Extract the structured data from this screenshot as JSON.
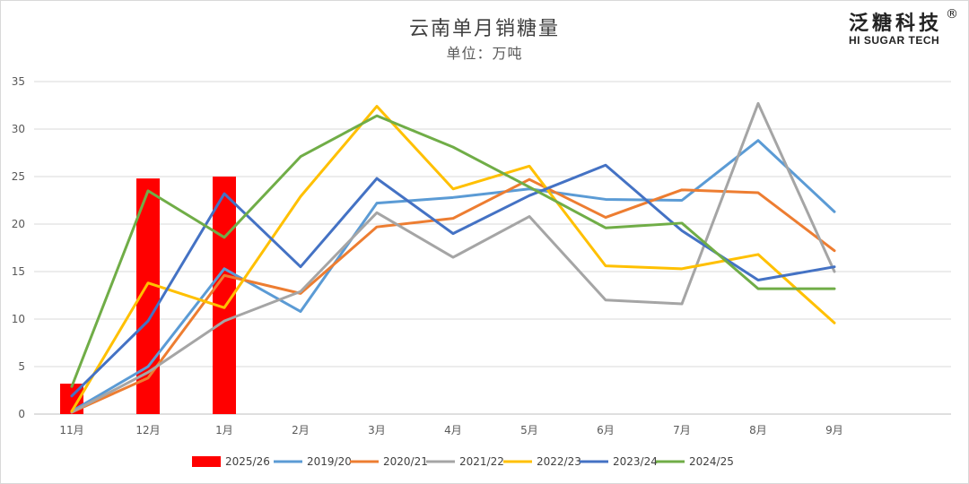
{
  "chart_data": {
    "type": "bar+line",
    "title": "云南单月销糖量",
    "subtitle": "单位：万吨",
    "categories": [
      "11月",
      "12月",
      "1月",
      "2月",
      "3月",
      "4月",
      "5月",
      "6月",
      "7月",
      "8月",
      "9月"
    ],
    "ylim": [
      0,
      35
    ],
    "yticks": [
      "0",
      "5",
      "10",
      "15",
      "20",
      "25",
      "30",
      "35"
    ],
    "grid": true,
    "legend_position": "bottom",
    "series": [
      {
        "name": "2025/26",
        "kind": "bar",
        "color": "#ff0000",
        "values": [
          3.2,
          24.8,
          25.0,
          null,
          null,
          null,
          null,
          null,
          null,
          null,
          null
        ]
      },
      {
        "name": "2019/20",
        "kind": "line",
        "color": "#5b9bd5",
        "values": [
          0.3,
          5.0,
          15.3,
          10.8,
          22.2,
          22.8,
          23.7,
          22.6,
          22.5,
          28.8,
          21.3
        ]
      },
      {
        "name": "2020/21",
        "kind": "line",
        "color": "#ed7d31",
        "values": [
          0.2,
          3.8,
          14.6,
          12.7,
          19.7,
          20.6,
          24.7,
          20.7,
          23.6,
          23.3,
          17.2
        ]
      },
      {
        "name": "2021/22",
        "kind": "line",
        "color": "#a5a5a5",
        "values": [
          0.2,
          4.4,
          9.8,
          12.9,
          21.2,
          16.5,
          20.8,
          12.0,
          11.6,
          32.7,
          15.0
        ]
      },
      {
        "name": "2022/23",
        "kind": "line",
        "color": "#ffc000",
        "values": [
          0.3,
          13.8,
          11.2,
          22.9,
          32.4,
          23.7,
          26.1,
          15.6,
          15.3,
          16.8,
          9.6
        ]
      },
      {
        "name": "2023/24",
        "kind": "line",
        "color": "#4472c4",
        "values": [
          1.9,
          9.8,
          23.2,
          15.5,
          24.8,
          19.0,
          23.0,
          26.2,
          19.3,
          14.1,
          15.5
        ]
      },
      {
        "name": "2024/25",
        "kind": "line",
        "color": "#70ad47",
        "values": [
          2.9,
          23.5,
          18.6,
          27.1,
          31.4,
          28.1,
          23.9,
          19.6,
          20.1,
          13.2,
          13.2
        ]
      }
    ]
  },
  "brand": {
    "cn": "泛糖科技",
    "en": "HI SUGAR TECH",
    "reg": "®"
  }
}
